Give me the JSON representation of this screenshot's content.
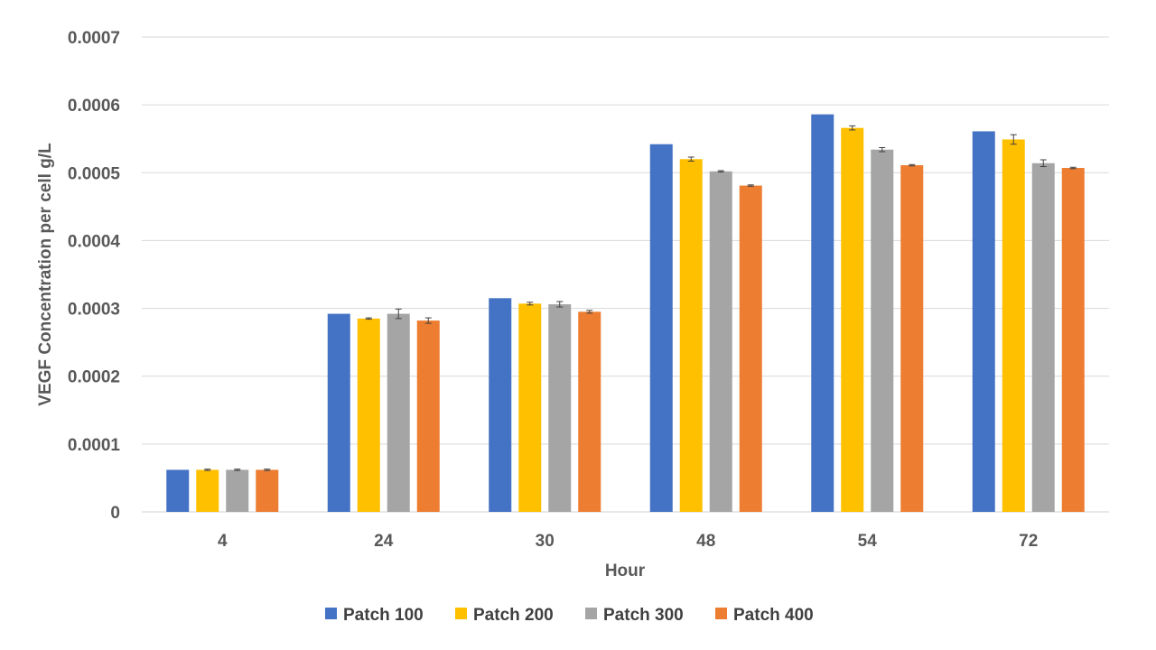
{
  "chart_data": {
    "type": "bar",
    "title": "",
    "xlabel": "Hour",
    "ylabel": "VEGF Concentration per cell g/L",
    "categories": [
      "4",
      "24",
      "30",
      "48",
      "54",
      "72"
    ],
    "ylim": [
      0,
      0.0007
    ],
    "yticks": [
      "0",
      "0.0001",
      "0.0002",
      "0.0003",
      "0.0004",
      "0.0005",
      "0.0006",
      "0.0007"
    ],
    "grid": true,
    "legend_position": "bottom",
    "series": [
      {
        "name": "Patch 100",
        "color": "#4472C4",
        "values": [
          6.2e-05,
          0.000292,
          0.000315,
          0.000542,
          0.000586,
          0.000561
        ],
        "errors": [
          0,
          0,
          0,
          0,
          0,
          0
        ]
      },
      {
        "name": "Patch 200",
        "color": "#FFC000",
        "values": [
          6.2e-05,
          0.000285,
          0.000307,
          0.00052,
          0.000566,
          0.000549
        ],
        "errors": [
          1e-06,
          1e-06,
          2e-06,
          3e-06,
          3e-06,
          7e-06
        ]
      },
      {
        "name": "Patch 300",
        "color": "#A5A5A5",
        "values": [
          6.2e-05,
          0.000292,
          0.000306,
          0.000502,
          0.000534,
          0.000514
        ],
        "errors": [
          1e-06,
          7e-06,
          4e-06,
          1e-06,
          3e-06,
          5e-06
        ]
      },
      {
        "name": "Patch 400",
        "color": "#ED7D31",
        "values": [
          6.2e-05,
          0.000282,
          0.000295,
          0.000481,
          0.000511,
          0.000507
        ],
        "errors": [
          1e-06,
          4e-06,
          2e-06,
          1e-06,
          1e-06,
          1e-06
        ]
      }
    ]
  }
}
